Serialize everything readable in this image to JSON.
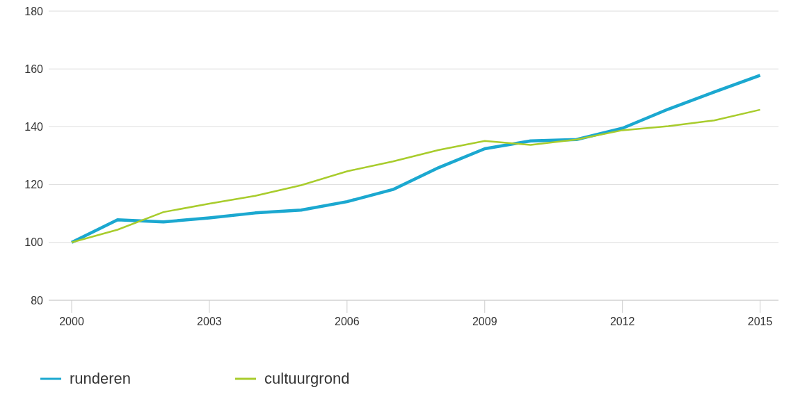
{
  "chart_data": {
    "type": "line",
    "x": [
      2000,
      2001,
      2002,
      2003,
      2004,
      2005,
      2006,
      2007,
      2008,
      2009,
      2010,
      2011,
      2012,
      2013,
      2014,
      2015
    ],
    "series": [
      {
        "name": "runderen",
        "color": "#1ba8d0",
        "values": [
          100,
          107.8,
          107.1,
          108.5,
          110.2,
          111.2,
          114.1,
          118.3,
          125.9,
          132.4,
          135.1,
          135.6,
          139.5,
          146.1,
          152,
          157.8
        ]
      },
      {
        "name": "cultuurgrond",
        "color": "#a8cc2c",
        "values": [
          100,
          104.4,
          110.5,
          113.4,
          116.1,
          119.8,
          124.6,
          128,
          132,
          135.1,
          133.7,
          135.6,
          138.8,
          140.2,
          142.2,
          145.9
        ]
      }
    ],
    "xlim": [
      1999.5,
      2015.4
    ],
    "xticks": [
      2000,
      2003,
      2006,
      2009,
      2012,
      2015
    ],
    "ylim": [
      80,
      180
    ],
    "yticks": [
      80,
      100,
      120,
      140,
      160,
      180
    ],
    "grid": "y",
    "legend": "bottom",
    "marker": "none",
    "line_style": "solid"
  }
}
